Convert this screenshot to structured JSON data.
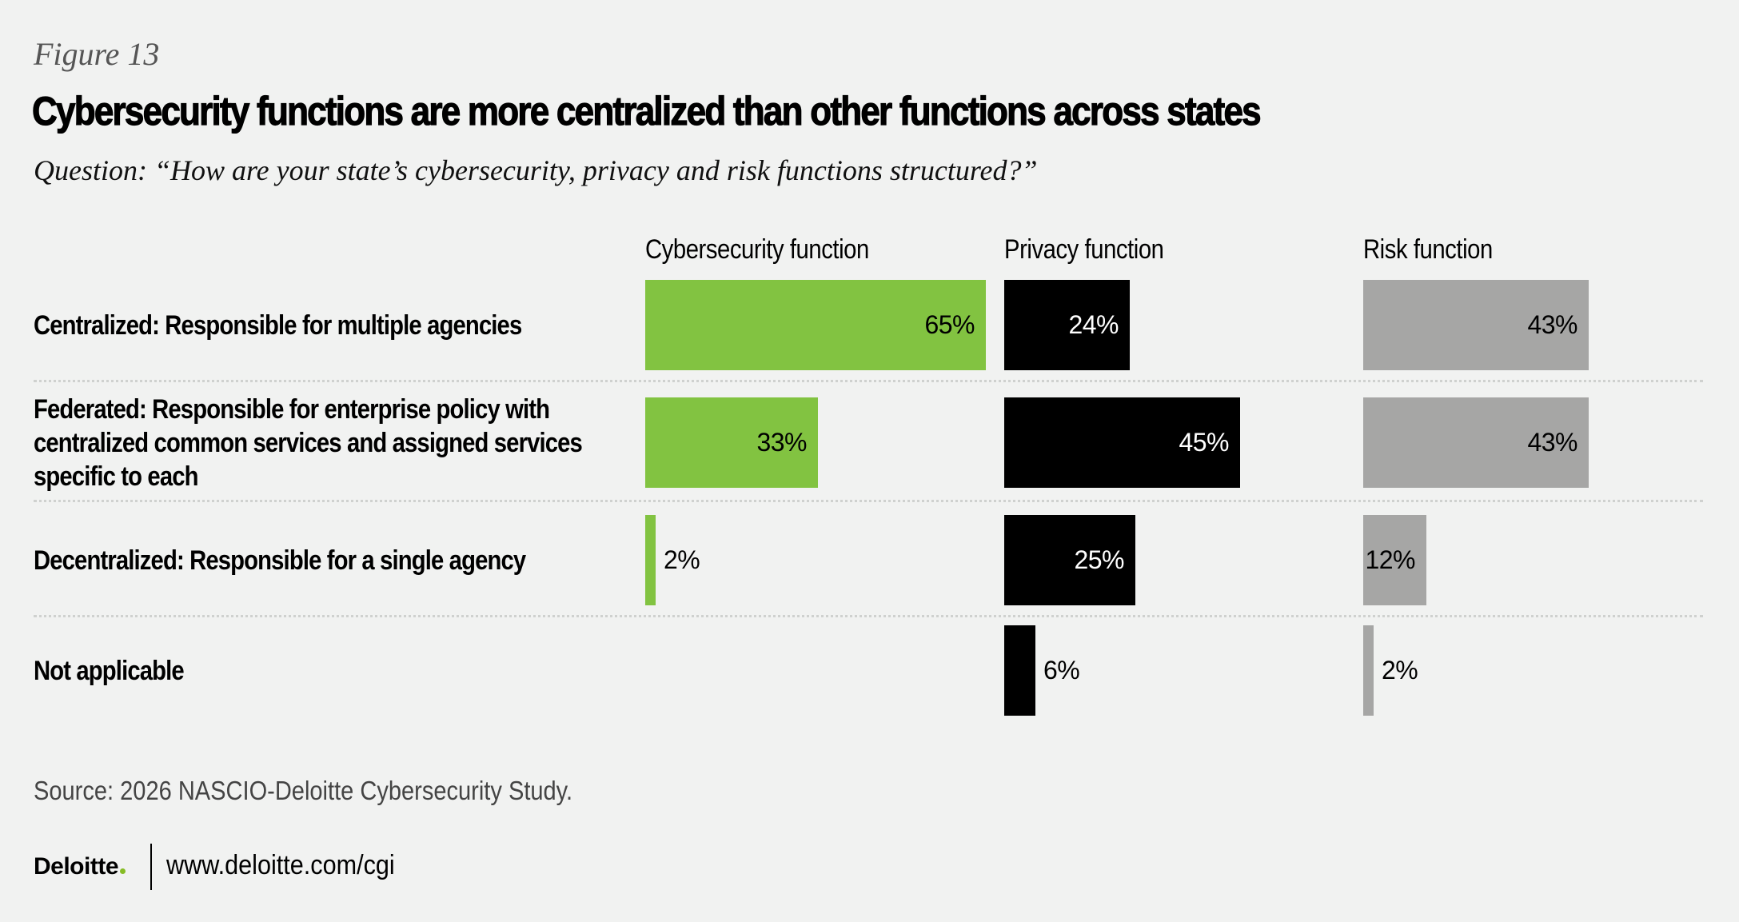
{
  "header": {
    "figure_label": "Figure 13",
    "title": "Cybersecurity functions are more centralized than other functions across states",
    "question": "Question: “How are your state’s cybersecurity, privacy and risk functions structured?”"
  },
  "colors": {
    "background": "#f1f2f1",
    "cybersecurity": "#82c341",
    "privacy": "#000000",
    "risk": "#a6a6a5",
    "separator": "#cfd1cf",
    "logo_dot": "#86bc25"
  },
  "chart_data": {
    "type": "bar",
    "orientation": "horizontal",
    "title": "Cybersecurity functions are more centralized than other functions across states",
    "subtitle": "Question: “How are your state’s cybersecurity, privacy and risk functions structured?”",
    "categories": [
      "Centralized: Responsible for multiple agencies",
      "Federated: Responsible for enterprise policy with centralized common services and assigned services specific to each",
      "Decentralized: Responsible for a single agency",
      "Not applicable"
    ],
    "category_lines": [
      [
        "Centralized: Responsible for multiple agencies"
      ],
      [
        "Federated: Responsible for enterprise policy with",
        "centralized common services and assigned services",
        "specific to each"
      ],
      [
        "Decentralized: Responsible for a single agency"
      ],
      [
        "Not applicable"
      ]
    ],
    "series": [
      {
        "name": "Cybersecurity function",
        "values": [
          65,
          33,
          2,
          null
        ],
        "labels": [
          "65%",
          "33%",
          "2%",
          ""
        ],
        "color": "#82c341",
        "label_color": "#000000"
      },
      {
        "name": "Privacy function",
        "values": [
          24,
          45,
          25,
          6
        ],
        "labels": [
          "24%",
          "45%",
          "25%",
          "6%"
        ],
        "color": "#000000",
        "label_color": "#ffffff"
      },
      {
        "name": "Risk function",
        "values": [
          43,
          43,
          12,
          2
        ],
        "labels": [
          "43%",
          "43%",
          "12%",
          "2%"
        ],
        "color": "#a6a6a5",
        "label_color": "#000000"
      }
    ],
    "unit": "%",
    "xlim": [
      0,
      100
    ],
    "grid": false,
    "legend": "column headers (top)"
  },
  "footer": {
    "source": "Source: 2026 NASCIO-Deloitte Cybersecurity Study.",
    "logo_text": "Deloitte",
    "website": "www.deloitte.com/cgi"
  }
}
